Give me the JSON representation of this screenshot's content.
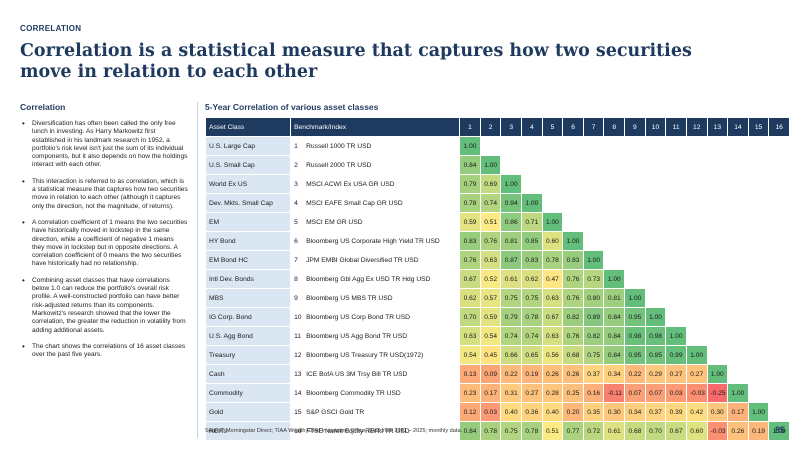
{
  "section_label": "CORRELATION",
  "headline": "Correlation is a statistical measure that captures how two securities move in relation to each other",
  "left": {
    "title": "Correlation",
    "bullets": [
      "Diversification has often been called the only free lunch in investing. As Harry Markowitz first established in his landmark research in 1952, a portfolio's risk level isn't just the sum of its individual components, but it also depends on how the holdings interact with each other.",
      "This interaction is referred to as correlation, which is a statistical measure that captures how two securities move in relation to each other (although it captures only the direction, not the magnitude, of returns).",
      "A correlation coefficient of 1 means the two securities have historically moved in lockstep in the same direction, while a coefficient of negative 1 means they move in lockstep but in opposite directions. A correlation coefficient of 0 means the two securities have historically had no relationship.",
      "Combining asset classes that have correlations below 1.0 can reduce the portfolio's overall risk profile. A well-constructed portfolio can have better risk-adjusted returns than its components. Markowitz's research showed that the lower the correlation, the greater the reduction in volatility from adding additional assets.",
      "The chart shows the correlations of 16 asset classes over the past five years."
    ]
  },
  "table": {
    "title": "5-Year Correlation of various asset classes",
    "header_asset": "Asset Class",
    "header_bench": "Benchmark/Index",
    "col_numbers": [
      "1",
      "2",
      "3",
      "4",
      "5",
      "6",
      "7",
      "8",
      "9",
      "10",
      "11",
      "12",
      "13",
      "14",
      "15",
      "16"
    ],
    "rows": [
      {
        "asset": "U.S. Large Cap",
        "num": "1",
        "bench": "Russell 1000 TR USD",
        "values": [
          "1.00"
        ]
      },
      {
        "asset": "U.S. Small Cap",
        "num": "2",
        "bench": "Russell 2000 TR USD",
        "values": [
          "0.84",
          "1.00"
        ]
      },
      {
        "asset": "World Ex US",
        "num": "3",
        "bench": "MSCI ACWI Ex USA GR USD",
        "values": [
          "0.79",
          "0.69",
          "1.00"
        ]
      },
      {
        "asset": "Dev. Mkts. Small Cap",
        "num": "4",
        "bench": "MSCI EAFE Small Cap GR USD",
        "values": [
          "0.78",
          "0.74",
          "0.94",
          "1.00"
        ]
      },
      {
        "asset": "EM",
        "num": "5",
        "bench": "MSCI EM GR USD",
        "values": [
          "0.59",
          "0.51",
          "0.86",
          "0.71",
          "1.00"
        ]
      },
      {
        "asset": "HY Bond",
        "num": "6",
        "bench": "Bloomberg US Corporate High Yield TR USD",
        "values": [
          "0.83",
          "0.76",
          "0.81",
          "0.85",
          "0.60",
          "1.00"
        ]
      },
      {
        "asset": "EM Bond HC",
        "num": "7",
        "bench": "JPM EMBI Global Diversified TR USD",
        "values": [
          "0.76",
          "0.63",
          "0.87",
          "0.83",
          "0.78",
          "0.83",
          "1.00"
        ]
      },
      {
        "asset": "Intl Dev. Bonds",
        "num": "8",
        "bench": "Bloomberg Gbl Agg Ex USD TR Hdg USD",
        "values": [
          "0.67",
          "0.52",
          "0.61",
          "0.62",
          "0.47",
          "0.76",
          "0.73",
          "1.00"
        ]
      },
      {
        "asset": "MBS",
        "num": "9",
        "bench": "Bloomberg US MBS TR USD",
        "values": [
          "0.62",
          "0.57",
          "0.75",
          "0.75",
          "0.63",
          "0.76",
          "0.80",
          "0.81",
          "1.00"
        ]
      },
      {
        "asset": "IG Corp. Bond",
        "num": "10",
        "bench": "Bloomberg US Corp Bond TR USD",
        "values": [
          "0.70",
          "0.59",
          "0.79",
          "0.78",
          "0.67",
          "0.82",
          "0.89",
          "0.84",
          "0.95",
          "1.00"
        ]
      },
      {
        "asset": "U.S. Agg Bond",
        "num": "11",
        "bench": "Bloomberg US Agg Bond TR USD",
        "values": [
          "0.63",
          "0.54",
          "0.74",
          "0.74",
          "0.63",
          "0.76",
          "0.82",
          "0.84",
          "0.98",
          "0.98",
          "1.00"
        ]
      },
      {
        "asset": "Treasury",
        "num": "12",
        "bench": "Bloomberg US Treasury TR USD(1972)",
        "values": [
          "0.54",
          "0.45",
          "0.66",
          "0.65",
          "0.56",
          "0.68",
          "0.75",
          "0.84",
          "0.95",
          "0.95",
          "0.99",
          "1.00"
        ]
      },
      {
        "asset": "Cash",
        "num": "13",
        "bench": "ICE BofA US 3M Trsy Bill TR USD",
        "values": [
          "0.13",
          "0.09",
          "0.22",
          "0.19",
          "0.26",
          "0.26",
          "0.37",
          "0.34",
          "0.22",
          "0.29",
          "0.27",
          "0.27",
          "1.00"
        ]
      },
      {
        "asset": "Commodity",
        "num": "14",
        "bench": "Bloomberg Commodity TR USD",
        "values": [
          "0.23",
          "0.17",
          "0.31",
          "0.27",
          "0.28",
          "0.25",
          "0.16",
          "-0.11",
          "0.07",
          "0.07",
          "0.03",
          "-0.03",
          "-0.25",
          "1.00"
        ]
      },
      {
        "asset": "Gold",
        "num": "15",
        "bench": "S&P GSCI Gold TR",
        "values": [
          "0.12",
          "0.03",
          "0.40",
          "0.36",
          "0.40",
          "0.20",
          "0.35",
          "0.30",
          "0.34",
          "0.37",
          "0.39",
          "0.42",
          "0.30",
          "0.17",
          "1.00"
        ]
      },
      {
        "asset": "REITs",
        "num": "16",
        "bench": "FTSE Nareit Equity REITs TR USD",
        "values": [
          "0.84",
          "0.78",
          "0.75",
          "0.78",
          "0.51",
          "0.77",
          "0.72",
          "0.61",
          "0.68",
          "0.70",
          "0.67",
          "0.60",
          "-0.03",
          "0.26",
          "0.19",
          "1.00"
        ]
      }
    ],
    "color_scale": {
      "low": "#f8696b",
      "mid": "#ffeb84",
      "high": "#63be7b"
    }
  },
  "source": "Source: Morningstar Direct; TIAA Wealth Chief Investment Office. Data from 2021 – 2025; monthly data.",
  "page_number": "85"
}
